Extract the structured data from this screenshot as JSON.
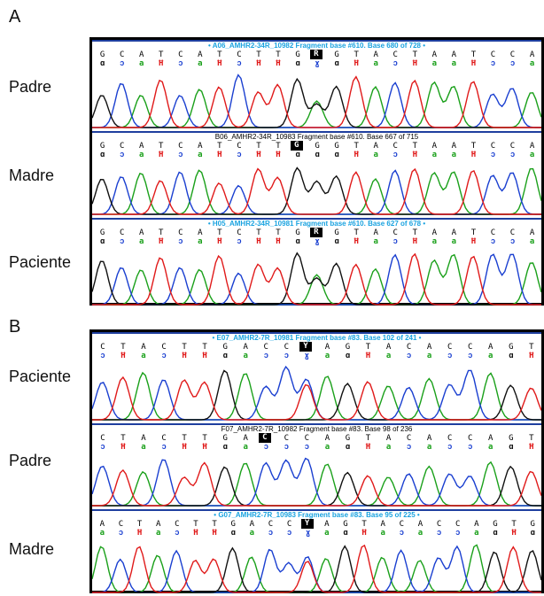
{
  "panels": [
    {
      "letter": "A",
      "tracks": [
        {
          "label": "Padre",
          "header": "• A06_AMHR2-34R_10982 Fragment base #610. Base 680 of 728 •",
          "header_style": "cyan",
          "bases": "GCATCATCTTGRGTACTAATCCA",
          "highlight": "R"
        },
        {
          "label": "Madre",
          "header": "B06_AMHR2-34R_10983 Fragment base #610. Base 667 of 715",
          "header_style": "black",
          "bases": "GCATCATCTTGGGTACTAATCCA",
          "highlight": "G"
        },
        {
          "label": "Paciente",
          "header": "• H05_AMHR2-34R_10981 Fragment base #610. Base 627 of 678 •",
          "header_style": "cyan",
          "bases": "GCATCATCTTGRGTACTAATCCA",
          "highlight": "R"
        }
      ]
    },
    {
      "letter": "B",
      "tracks": [
        {
          "label": "Paciente",
          "header": "• E07_AMHR2-7R_10981 Fragment base #83. Base 102 of 241 •",
          "header_style": "cyan",
          "bases": "CTACTTGACCYAGTACACCAGT",
          "highlight": "Y"
        },
        {
          "label": "Padre",
          "header": "F07_AMHR2-7R_10982 Fragment base #83. Base 98 of 236",
          "header_style": "black",
          "bases": "CTACTTGACCCAGTACACCAGT",
          "highlight": "C"
        },
        {
          "label": "Madre",
          "header": "• G07_AMHR2-7R_10983 Fragment base #83. Base 95 of 225 •",
          "header_style": "cyan",
          "bases": "ACTACTTGACCYAGTACACCAGTG",
          "highlight": "Y"
        }
      ]
    }
  ],
  "colors": {
    "A": "#1aa01a",
    "C": "#1a3fd0",
    "G": "#111111",
    "T": "#e01a1a",
    "header_cyan": "#1aa3e0",
    "frame_blue": "#1f3f9f"
  }
}
